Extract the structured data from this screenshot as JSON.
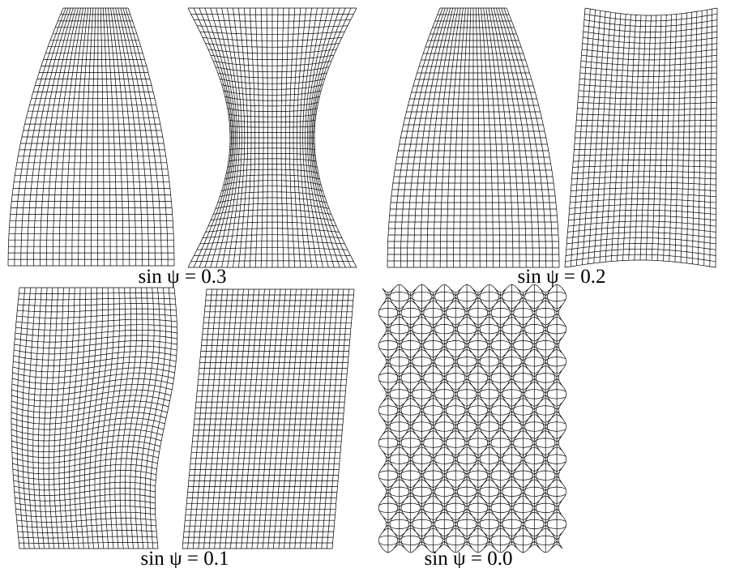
{
  "panels": [
    {
      "label": "sin ψ = 0.3"
    },
    {
      "label": "sin ψ = 0.2"
    },
    {
      "label": "sin ψ = 0.1"
    },
    {
      "label": "sin ψ = 0.0"
    }
  ]
}
